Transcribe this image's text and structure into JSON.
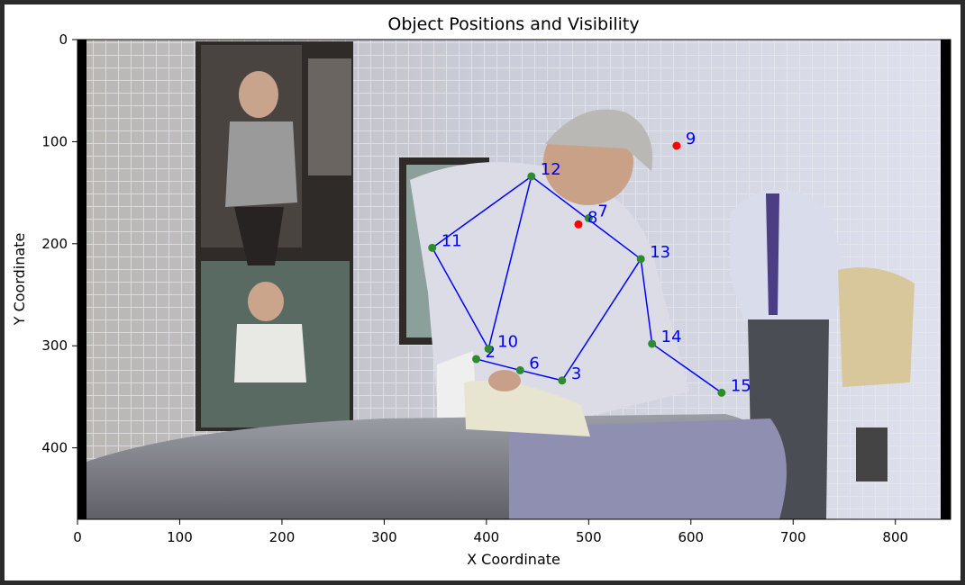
{
  "chart_data": {
    "type": "scatter",
    "title": "Object Positions and Visibility",
    "xlabel": "X Coordinate",
    "ylabel": "Y Coordinate",
    "xlim": [
      0,
      854
    ],
    "ylim": [
      470,
      0
    ],
    "x_ticks": [
      0,
      100,
      200,
      300,
      400,
      500,
      600,
      700,
      800
    ],
    "y_ticks": [
      0,
      100,
      200,
      300,
      400
    ],
    "grid": false,
    "legend": "none",
    "background": "photograph of a man ironing a shirt on an ironing board; a mannequin wearing a striped shirt and tie on the right; fashion posters on the left wall",
    "colors": {
      "visible": "#2e8b2e",
      "hidden": "#ff0000",
      "label": "#0000ff",
      "line": "#0000ff"
    },
    "points": [
      {
        "id": "2",
        "x": 390,
        "y": 313,
        "visible": true
      },
      {
        "id": "3",
        "x": 474,
        "y": 334,
        "visible": true
      },
      {
        "id": "6",
        "x": 433,
        "y": 324,
        "visible": true
      },
      {
        "id": "7",
        "x": 500,
        "y": 175,
        "visible": true
      },
      {
        "id": "8",
        "x": 490,
        "y": 181,
        "visible": false
      },
      {
        "id": "9",
        "x": 586,
        "y": 104,
        "visible": false
      },
      {
        "id": "10",
        "x": 402,
        "y": 303,
        "visible": true
      },
      {
        "id": "11",
        "x": 347,
        "y": 204,
        "visible": true
      },
      {
        "id": "12",
        "x": 444,
        "y": 134,
        "visible": true
      },
      {
        "id": "13",
        "x": 551,
        "y": 215,
        "visible": true
      },
      {
        "id": "14",
        "x": 562,
        "y": 298,
        "visible": true
      },
      {
        "id": "15",
        "x": 630,
        "y": 346,
        "visible": true
      }
    ],
    "connections": [
      [
        "11",
        "12"
      ],
      [
        "11",
        "10"
      ],
      [
        "12",
        "10"
      ],
      [
        "12",
        "13"
      ],
      [
        "13",
        "14"
      ],
      [
        "14",
        "15"
      ],
      [
        "13",
        "3"
      ],
      [
        "3",
        "6"
      ],
      [
        "6",
        "2"
      ]
    ]
  }
}
